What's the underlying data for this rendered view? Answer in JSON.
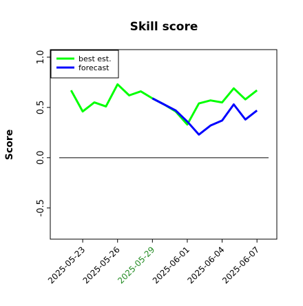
{
  "chart_data": {
    "type": "line",
    "title": "Skill score",
    "y_label": "Score",
    "x": [
      "2025-05-22",
      "2025-05-23",
      "2025-05-24",
      "2025-05-25",
      "2025-05-26",
      "2025-05-27",
      "2025-05-28",
      "2025-05-29",
      "2025-05-30",
      "2025-05-31",
      "2025-06-01",
      "2025-06-02",
      "2025-06-03",
      "2025-06-04",
      "2025-06-05",
      "2025-06-06",
      "2025-06-07"
    ],
    "series": [
      {
        "name": "best est.",
        "color": "#00ff00",
        "values": [
          0.67,
          0.46,
          0.55,
          0.51,
          0.73,
          0.62,
          0.66,
          0.59,
          0.53,
          0.46,
          0.33,
          0.54,
          0.57,
          0.55,
          0.69,
          0.58,
          0.67
        ]
      },
      {
        "name": "forecast",
        "color": "#0000ff",
        "values": [
          null,
          null,
          null,
          null,
          null,
          null,
          null,
          0.59,
          0.53,
          0.47,
          0.36,
          0.23,
          0.32,
          0.37,
          0.53,
          0.38,
          0.47
        ]
      }
    ],
    "xlim": [
      "2025-05-20T05:00",
      "2025-06-08T17:00"
    ],
    "xticks": [
      "2025-05-23",
      "2025-05-26",
      "2025-05-29",
      "2025-06-01",
      "2025-06-04",
      "2025-06-07"
    ],
    "xtick_label_colors": [
      "#000000",
      "#000000",
      "#228b22",
      "#000000",
      "#000000",
      "#000000"
    ],
    "ylim": [
      -0.81,
      1.075
    ],
    "yticks": [
      -0.5,
      {
        "value": 0,
        "label": "0.0"
      },
      0.5,
      {
        "value": 1,
        "label": "1.0"
      }
    ],
    "hline": 0,
    "hline_color": "#000000",
    "legend": "upper left",
    "grid": false
  }
}
